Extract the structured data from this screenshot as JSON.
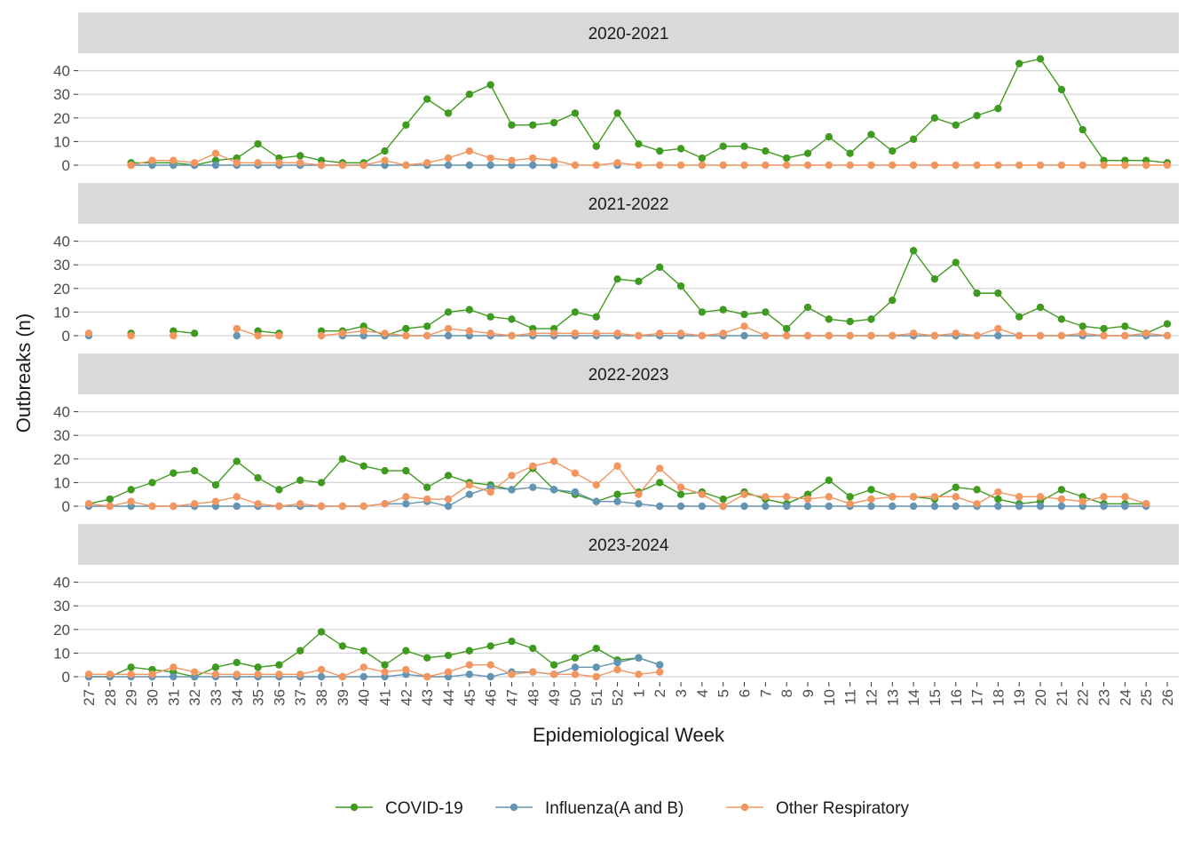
{
  "chart_data": {
    "type": "line",
    "xlabel": "Epidemiological Week",
    "ylabel": "Outbreaks (n)",
    "x": [
      "27",
      "28",
      "29",
      "30",
      "31",
      "32",
      "33",
      "34",
      "35",
      "36",
      "37",
      "38",
      "39",
      "40",
      "41",
      "42",
      "43",
      "44",
      "45",
      "46",
      "47",
      "48",
      "49",
      "50",
      "51",
      "52",
      "1",
      "2",
      "3",
      "4",
      "5",
      "6",
      "7",
      "8",
      "9",
      "10",
      "11",
      "12",
      "13",
      "14",
      "15",
      "16",
      "17",
      "18",
      "19",
      "20",
      "21",
      "22",
      "23",
      "24",
      "25",
      "26"
    ],
    "ylim": [
      0,
      45
    ],
    "yticks": [
      0,
      10,
      20,
      30,
      40
    ],
    "grid": true,
    "legend_position": "bottom",
    "series_colors": {
      "COVID-19": "#3f9b1f",
      "Influenza(A and B)": "#6494b4",
      "Other Respiratory": "#f2955f"
    },
    "legend": [
      "COVID-19",
      "Influenza(A and B)",
      "Other Respiratory"
    ],
    "panels": [
      {
        "label": "2020-2021",
        "series": [
          {
            "name": "COVID-19",
            "values": [
              null,
              null,
              1,
              1,
              1,
              0,
              2,
              3,
              9,
              3,
              4,
              2,
              1,
              1,
              6,
              17,
              28,
              22,
              30,
              34,
              17,
              17,
              18,
              22,
              8,
              22,
              9,
              6,
              7,
              3,
              8,
              8,
              6,
              3,
              5,
              12,
              5,
              13,
              6,
              11,
              20,
              17,
              21,
              24,
              43,
              45,
              32,
              15,
              2,
              2,
              2,
              1
            ]
          },
          {
            "name": "Influenza(A and B)",
            "values": [
              null,
              null,
              0,
              0,
              0,
              0,
              0,
              0,
              0,
              0,
              0,
              0,
              0,
              0,
              0,
              0,
              0,
              0,
              0,
              0,
              0,
              0,
              0,
              null,
              null,
              0,
              null,
              null,
              null,
              null,
              null,
              null,
              null,
              null,
              null,
              null,
              null,
              null,
              null,
              null,
              null,
              null,
              null,
              null,
              null,
              null,
              null,
              null,
              null,
              null,
              null,
              null
            ]
          },
          {
            "name": "Other Respiratory",
            "values": [
              null,
              null,
              0,
              2,
              2,
              1,
              5,
              1,
              1,
              1,
              1,
              0,
              0,
              0,
              2,
              0,
              1,
              3,
              6,
              3,
              2,
              3,
              2,
              0,
              0,
              1,
              0,
              0,
              0,
              0,
              0,
              0,
              0,
              0,
              0,
              0,
              0,
              0,
              0,
              0,
              0,
              0,
              0,
              0,
              0,
              0,
              0,
              0,
              0,
              0,
              0,
              0
            ]
          }
        ]
      },
      {
        "label": "2021-2022",
        "series": [
          {
            "name": "COVID-19",
            "values": [
              null,
              null,
              1,
              null,
              2,
              1,
              null,
              null,
              2,
              1,
              null,
              2,
              2,
              4,
              0,
              3,
              4,
              10,
              11,
              8,
              7,
              3,
              3,
              10,
              8,
              24,
              23,
              29,
              21,
              10,
              11,
              9,
              10,
              3,
              12,
              7,
              6,
              7,
              15,
              36,
              24,
              31,
              18,
              18,
              8,
              12,
              7,
              4,
              3,
              4,
              1,
              5
            ]
          },
          {
            "name": "Influenza(A and B)",
            "values": [
              0,
              null,
              null,
              null,
              null,
              null,
              null,
              0,
              null,
              null,
              null,
              null,
              0,
              0,
              0,
              0,
              0,
              0,
              0,
              0,
              0,
              0,
              0,
              0,
              0,
              0,
              0,
              0,
              0,
              0,
              0,
              0,
              0,
              0,
              0,
              0,
              0,
              0,
              0,
              0,
              0,
              0,
              0,
              0,
              0,
              0,
              0,
              0,
              0,
              0,
              0,
              0
            ]
          },
          {
            "name": "Other Respiratory",
            "values": [
              1,
              null,
              0,
              null,
              0,
              null,
              null,
              3,
              0,
              0,
              null,
              0,
              1,
              2,
              1,
              0,
              0,
              3,
              2,
              1,
              0,
              1,
              1,
              1,
              1,
              1,
              0,
              1,
              1,
              0,
              1,
              4,
              0,
              0,
              0,
              0,
              0,
              0,
              0,
              1,
              0,
              1,
              0,
              3,
              0,
              0,
              0,
              1,
              0,
              0,
              1,
              0
            ]
          }
        ]
      },
      {
        "label": "2022-2023",
        "series": [
          {
            "name": "COVID-19",
            "values": [
              1,
              3,
              7,
              10,
              14,
              15,
              9,
              19,
              12,
              7,
              11,
              10,
              20,
              17,
              15,
              15,
              8,
              13,
              10,
              9,
              7,
              16,
              7,
              5,
              2,
              5,
              6,
              10,
              5,
              6,
              3,
              6,
              3,
              1,
              5,
              11,
              4,
              7,
              4,
              4,
              3,
              8,
              7,
              3,
              1,
              2,
              7,
              4,
              1,
              1,
              1,
              null
            ]
          },
          {
            "name": "Influenza(A and B)",
            "values": [
              0,
              0,
              0,
              0,
              0,
              0,
              0,
              0,
              0,
              0,
              0,
              0,
              0,
              0,
              1,
              1,
              2,
              0,
              5,
              8,
              7,
              8,
              7,
              6,
              2,
              2,
              1,
              0,
              0,
              0,
              0,
              0,
              0,
              0,
              0,
              0,
              0,
              0,
              0,
              0,
              0,
              0,
              0,
              0,
              0,
              0,
              0,
              0,
              0,
              0,
              0,
              null
            ]
          },
          {
            "name": "Other Respiratory",
            "values": [
              1,
              0,
              2,
              0,
              0,
              1,
              2,
              4,
              1,
              0,
              1,
              0,
              0,
              0,
              1,
              4,
              3,
              3,
              9,
              6,
              13,
              17,
              19,
              14,
              9,
              17,
              5,
              16,
              8,
              5,
              0,
              5,
              4,
              4,
              3,
              4,
              1,
              3,
              4,
              4,
              4,
              4,
              1,
              6,
              4,
              4,
              3,
              2,
              4,
              4,
              1,
              null
            ]
          }
        ]
      },
      {
        "label": "2023-2024",
        "series": [
          {
            "name": "COVID-19",
            "values": [
              0,
              0,
              4,
              3,
              2,
              0,
              4,
              6,
              4,
              5,
              11,
              19,
              13,
              11,
              5,
              11,
              8,
              9,
              11,
              13,
              15,
              12,
              5,
              8,
              12,
              7,
              8,
              5,
              null,
              null,
              null,
              null,
              null,
              null,
              null,
              null,
              null,
              null,
              null,
              null,
              null,
              null,
              null,
              null,
              null,
              null,
              null,
              null,
              null,
              null,
              null,
              null
            ]
          },
          {
            "name": "Influenza(A and B)",
            "values": [
              0,
              0,
              0,
              0,
              0,
              0,
              0,
              0,
              0,
              0,
              0,
              0,
              0,
              0,
              0,
              1,
              0,
              0,
              1,
              0,
              2,
              2,
              1,
              4,
              4,
              6,
              8,
              5,
              null,
              null,
              null,
              null,
              null,
              null,
              null,
              null,
              null,
              null,
              null,
              null,
              null,
              null,
              null,
              null,
              null,
              null,
              null,
              null,
              null,
              null,
              null,
              null
            ]
          },
          {
            "name": "Other Respiratory",
            "values": [
              1,
              1,
              1,
              1,
              4,
              2,
              1,
              1,
              1,
              1,
              1,
              3,
              0,
              4,
              2,
              3,
              0,
              2,
              5,
              5,
              1,
              2,
              1,
              1,
              0,
              3,
              1,
              2,
              null,
              null,
              null,
              null,
              null,
              null,
              null,
              null,
              null,
              null,
              null,
              null,
              null,
              null,
              null,
              null,
              null,
              null,
              null,
              null,
              null,
              null,
              null,
              null
            ]
          }
        ]
      }
    ]
  }
}
